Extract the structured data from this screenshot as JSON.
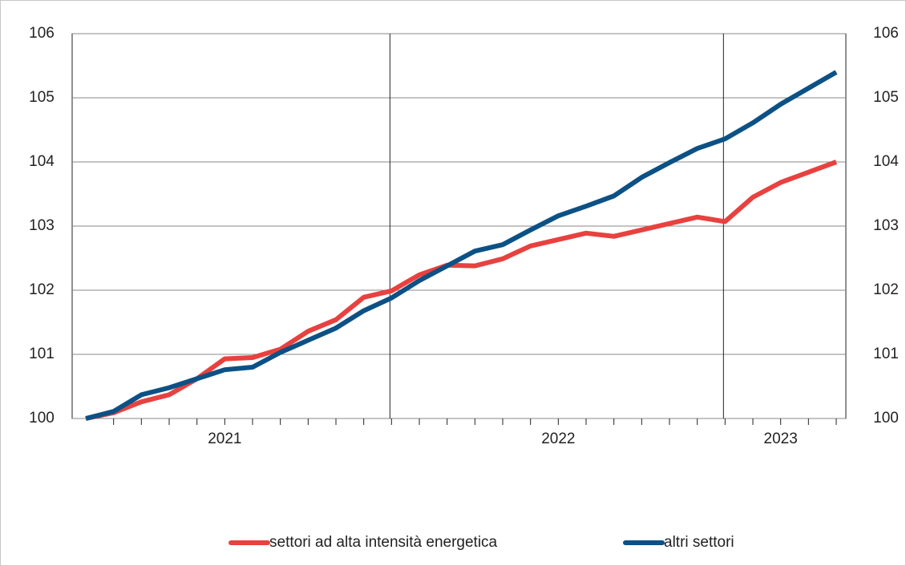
{
  "chart_data": {
    "type": "line",
    "categories": [
      null,
      null,
      null,
      null,
      null,
      "2021",
      null,
      null,
      null,
      null,
      null,
      null,
      null,
      null,
      null,
      null,
      null,
      "2022",
      null,
      null,
      null,
      null,
      null,
      null,
      null,
      "2023",
      null,
      null
    ],
    "series": [
      {
        "name": "settori ad alta intensità energetica",
        "color": "#e8413f",
        "values": [
          100.0,
          100.09,
          100.26,
          100.37,
          100.62,
          100.93,
          100.95,
          101.08,
          101.36,
          101.54,
          101.89,
          101.99,
          102.24,
          102.39,
          102.38,
          102.49,
          102.69,
          102.79,
          102.89,
          102.84,
          102.94,
          103.04,
          103.14,
          103.07,
          103.45,
          103.68,
          103.84,
          104.0
        ]
      },
      {
        "name": "altri settori",
        "color": "#0c5185",
        "values": [
          100.0,
          100.11,
          100.37,
          100.48,
          100.62,
          100.76,
          100.8,
          101.03,
          101.22,
          101.41,
          101.68,
          101.88,
          102.15,
          102.38,
          102.61,
          102.71,
          102.94,
          103.16,
          103.31,
          103.47,
          103.76,
          103.99,
          104.21,
          104.36,
          104.61,
          104.9,
          105.15,
          105.4
        ]
      }
    ],
    "ylim": [
      100,
      106
    ],
    "yticks": [
      100,
      101,
      102,
      103,
      104,
      105,
      106
    ],
    "grid": true
  }
}
